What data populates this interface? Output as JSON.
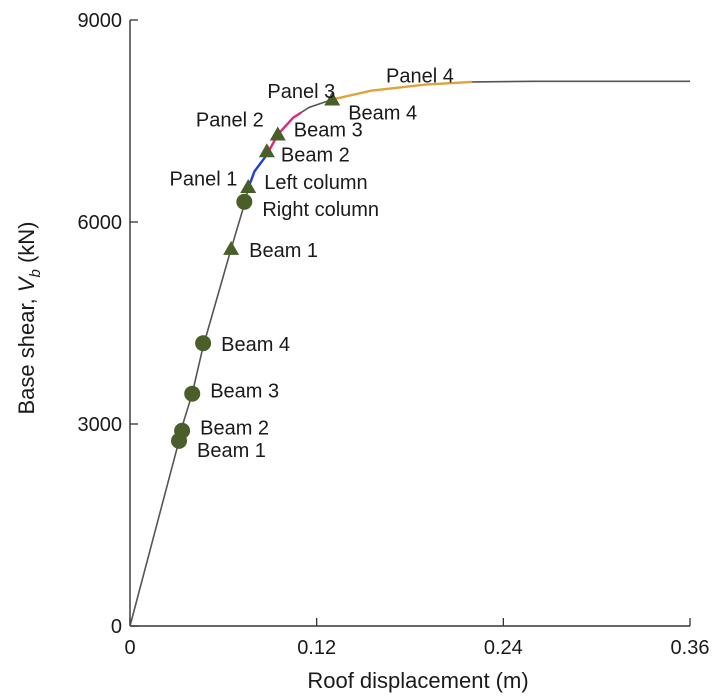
{
  "chart_data": {
    "type": "line",
    "title": "",
    "xlabel": "Roof displacement (m)",
    "ylabel_main": "Base shear, ",
    "ylabel_symbol": "V",
    "ylabel_subscript": "b",
    "ylabel_unit": " (kN)",
    "xlim": [
      0,
      0.36
    ],
    "ylim": [
      0,
      9000
    ],
    "xticks": [
      0,
      0.12,
      0.24,
      0.36
    ],
    "xtick_labels": [
      "0",
      "0.12",
      "0.24",
      "0.36"
    ],
    "yticks": [
      0,
      3000,
      6000,
      9000
    ],
    "ytick_labels": [
      "0",
      "3000",
      "6000",
      "9000"
    ],
    "grid": false,
    "curve": {
      "color": "#555555",
      "points": [
        [
          0,
          0
        ],
        [
          0.0315,
          2750
        ],
        [
          0.032,
          2850
        ],
        [
          0.04,
          3450
        ],
        [
          0.047,
          4150
        ],
        [
          0.065,
          5600
        ],
        [
          0.074,
          6300
        ],
        [
          0.076,
          6500
        ],
        [
          0.08,
          6750
        ],
        [
          0.088,
          7000
        ],
        [
          0.095,
          7300
        ],
        [
          0.105,
          7550
        ],
        [
          0.115,
          7700
        ],
        [
          0.13,
          7820
        ],
        [
          0.155,
          7950
        ],
        [
          0.19,
          8040
        ],
        [
          0.22,
          8080
        ],
        [
          0.26,
          8090
        ],
        [
          0.3,
          8090
        ],
        [
          0.36,
          8090
        ]
      ]
    },
    "colored_segments": [
      {
        "color": "#1f3fdc",
        "x": [
          0.076,
          0.088
        ]
      },
      {
        "color": "#e0287e",
        "x": [
          0.088,
          0.11
        ]
      },
      {
        "color": "#e0a33a",
        "x": [
          0.13,
          0.22
        ]
      }
    ],
    "markers": {
      "color": "#4a5e2a",
      "circles": [
        {
          "x": 0.0315,
          "y": 2750,
          "label": "Beam 1"
        },
        {
          "x": 0.0335,
          "y": 2900,
          "label": "Beam 2"
        },
        {
          "x": 0.04,
          "y": 3450,
          "label": "Beam 3"
        },
        {
          "x": 0.047,
          "y": 4200,
          "label": "Beam 4"
        },
        {
          "x": 0.0735,
          "y": 6300,
          "label": "Right column"
        }
      ],
      "triangles": [
        {
          "x": 0.065,
          "y": 5600,
          "label": "Beam 1"
        },
        {
          "x": 0.076,
          "y": 6520,
          "label": "Left column"
        },
        {
          "x": 0.088,
          "y": 7050,
          "label": "Beam 2"
        },
        {
          "x": 0.095,
          "y": 7300,
          "label": "Beam 3"
        },
        {
          "x": 0.13,
          "y": 7820,
          "label": "Beam 4"
        }
      ]
    },
    "panel_labels": [
      {
        "text": "Panel 1",
        "x": 0.078,
        "y": 6450
      },
      {
        "text": "Panel 2",
        "x": 0.095,
        "y": 7330
      },
      {
        "text": "Panel 3",
        "x": 0.114,
        "y": 7750
      },
      {
        "text": "Panel 4",
        "x": 0.162,
        "y": 7980
      }
    ]
  }
}
